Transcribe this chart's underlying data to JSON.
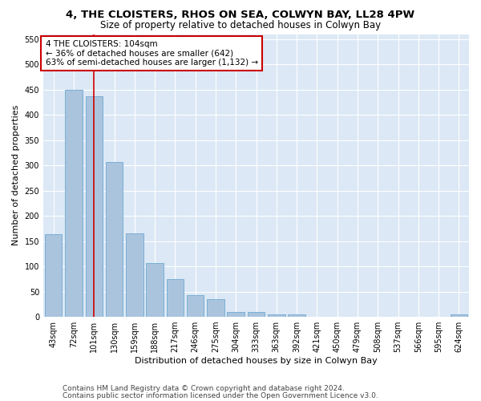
{
  "title_line1": "4, THE CLOISTERS, RHOS ON SEA, COLWYN BAY, LL28 4PW",
  "title_line2": "Size of property relative to detached houses in Colwyn Bay",
  "xlabel": "Distribution of detached houses by size in Colwyn Bay",
  "ylabel": "Number of detached properties",
  "categories": [
    "43sqm",
    "72sqm",
    "101sqm",
    "130sqm",
    "159sqm",
    "188sqm",
    "217sqm",
    "246sqm",
    "275sqm",
    "304sqm",
    "333sqm",
    "363sqm",
    "392sqm",
    "421sqm",
    "450sqm",
    "479sqm",
    "508sqm",
    "537sqm",
    "566sqm",
    "595sqm",
    "624sqm"
  ],
  "values": [
    163,
    450,
    437,
    307,
    165,
    107,
    75,
    43,
    35,
    10,
    10,
    5,
    5,
    0,
    0,
    0,
    0,
    0,
    0,
    0,
    5
  ],
  "bar_color": "#aac4de",
  "bar_edge_color": "#7aafd4",
  "highlight_bar_index": 2,
  "annotation_text": "4 THE CLOISTERS: 104sqm\n← 36% of detached houses are smaller (642)\n63% of semi-detached houses are larger (1,132) →",
  "annotation_box_color": "#ffffff",
  "annotation_box_edge_color": "#cc0000",
  "red_line_color": "#cc0000",
  "ylim": [
    0,
    560
  ],
  "yticks": [
    0,
    50,
    100,
    150,
    200,
    250,
    300,
    350,
    400,
    450,
    500,
    550
  ],
  "background_color": "#dce8f5",
  "grid_color": "#ffffff",
  "footer_line1": "Contains HM Land Registry data © Crown copyright and database right 2024.",
  "footer_line2": "Contains public sector information licensed under the Open Government Licence v3.0.",
  "title_fontsize": 9.5,
  "subtitle_fontsize": 8.5,
  "axis_label_fontsize": 8,
  "tick_fontsize": 7,
  "annotation_fontsize": 7.5,
  "footer_fontsize": 6.5
}
